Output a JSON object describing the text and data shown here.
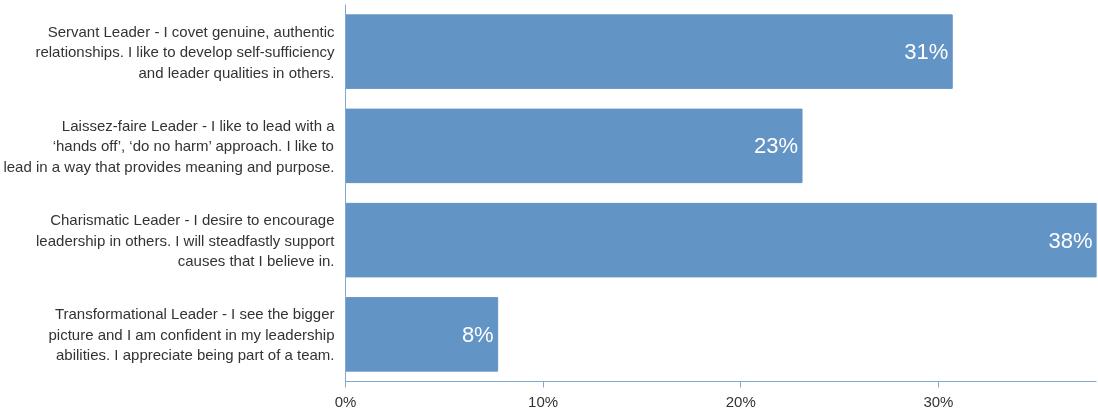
{
  "chart_data": {
    "type": "bar",
    "orientation": "horizontal",
    "categories": [
      "Servant Leader - I covet genuine, authentic relationships. I like to develop self-sufficiency and leader qualities in others.",
      "Laissez-faire Leader - I like to lead with a ‘hands off’, ‘do no harm’ approach. I like to lead in a way that provides meaning and purpose.",
      "Charismatic Leader - I desire to encourage leadership in others. I will steadfastly support causes that I believe in.",
      "Transformational Leader - I see the bigger picture and I am confident in my leadership abilities. I appreciate being part of a team."
    ],
    "values": [
      30.7,
      23.1,
      38,
      7.7
    ],
    "value_labels": [
      "31%",
      "23%",
      "38%",
      "8%"
    ],
    "color": "#6394c6",
    "xlim": [
      0,
      38
    ],
    "xticks": [
      {
        "value": 0,
        "label": "0%"
      },
      {
        "value": 10,
        "label": "10%"
      },
      {
        "value": 20,
        "label": "20%"
      },
      {
        "value": 30,
        "label": "30%"
      }
    ],
    "grid": false
  }
}
